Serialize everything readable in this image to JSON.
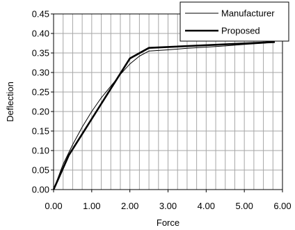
{
  "chart_data": {
    "type": "line",
    "title": "",
    "xlabel": "Force",
    "ylabel": "Deflection",
    "xlim": [
      0,
      6
    ],
    "ylim": [
      0,
      0.45
    ],
    "x_ticks": [
      "0.00",
      "1.00",
      "2.00",
      "3.00",
      "4.00",
      "5.00",
      "6.00"
    ],
    "y_ticks": [
      "0.00",
      "0.05",
      "0.10",
      "0.15",
      "0.20",
      "0.25",
      "0.30",
      "0.35",
      "0.40",
      "0.45"
    ],
    "x_tick_values": [
      0,
      1,
      2,
      3,
      4,
      5,
      6
    ],
    "y_tick_values": [
      0,
      0.05,
      0.1,
      0.15,
      0.2,
      0.25,
      0.3,
      0.35,
      0.4,
      0.45
    ],
    "grid": true,
    "minor_x_grid_step": 0.25,
    "legend_position": "top-right",
    "series": [
      {
        "name": "Manufacturer",
        "style": "thin",
        "x": [
          0,
          0.25,
          0.5,
          0.75,
          1.0,
          1.25,
          1.5,
          1.75,
          2.0,
          2.25,
          2.5,
          3.0,
          3.5,
          4.0,
          4.5,
          5.0,
          5.5,
          5.8
        ],
        "y": [
          0,
          0.065,
          0.115,
          0.16,
          0.2,
          0.235,
          0.265,
          0.295,
          0.322,
          0.342,
          0.355,
          0.358,
          0.362,
          0.365,
          0.368,
          0.372,
          0.375,
          0.378
        ]
      },
      {
        "name": "Proposed",
        "style": "thick",
        "x": [
          0,
          0.4,
          2.0,
          2.5,
          5.8
        ],
        "y": [
          0,
          0.088,
          0.336,
          0.363,
          0.378
        ]
      }
    ]
  }
}
